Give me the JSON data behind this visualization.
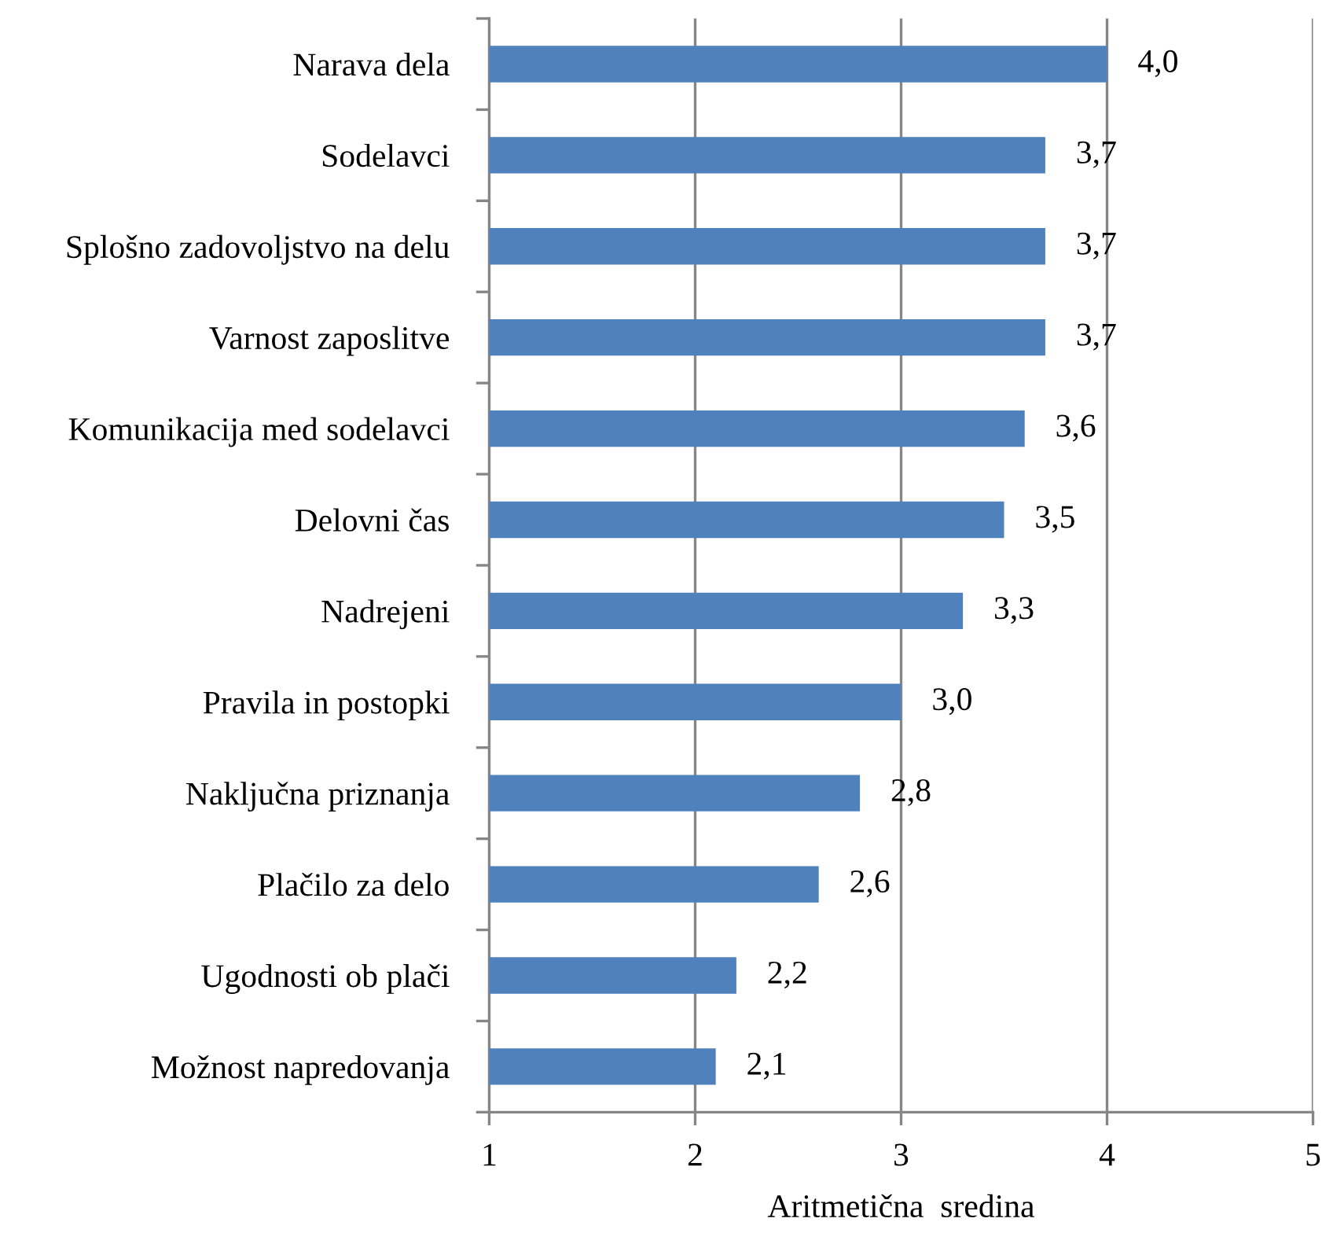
{
  "chart_data": {
    "type": "bar",
    "orientation": "horizontal",
    "xlabel": "Aritmetična  sredina",
    "categories": [
      "Narava dela",
      "Sodelavci",
      "Splošno zadovoljstvo na delu",
      "Varnost zaposlitve",
      "Komunikacija med sodelavci",
      "Delovni čas",
      "Nadrejeni",
      "Pravila in postopki",
      "Naključna priznanja",
      "Plačilo za delo",
      "Ugodnosti ob plači",
      "Možnost napredovanja"
    ],
    "values": [
      4.0,
      3.7,
      3.7,
      3.7,
      3.6,
      3.5,
      3.3,
      3.0,
      2.8,
      2.6,
      2.2,
      2.1
    ],
    "value_labels": [
      "4,0",
      "3,7",
      "3,7",
      "3,7",
      "3,6",
      "3,5",
      "3,3",
      "3,0",
      "2,8",
      "2,6",
      "2,2",
      "2,1"
    ],
    "color": "#4f81bd",
    "xlim": [
      1,
      5
    ],
    "xticks": [
      1,
      2,
      3,
      4,
      5
    ],
    "grid": "x"
  }
}
